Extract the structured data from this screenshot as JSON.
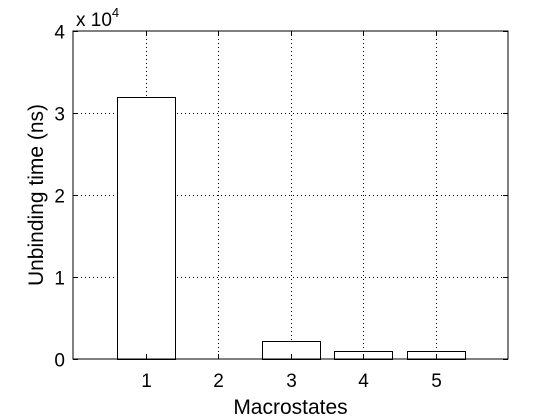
{
  "chart_data": {
    "type": "bar",
    "categories": [
      "1",
      "2",
      "3",
      "4",
      "5"
    ],
    "values": [
      32000,
      0,
      2250,
      950,
      950
    ],
    "xlabel": "Macrostates",
    "ylabel": "Unbinding time (ns)",
    "xlim": [
      0,
      6
    ],
    "ylim": [
      0,
      40000
    ],
    "y_ticks": [
      0,
      10000,
      20000,
      30000,
      40000
    ],
    "y_tick_labels": [
      "0",
      "1",
      "2",
      "3",
      "4"
    ],
    "y_exponent_base": "x 10",
    "y_exponent_power": "4",
    "grid": true,
    "legend": "none",
    "bar_fill": "#ffffff",
    "bar_edge": "#000000"
  }
}
